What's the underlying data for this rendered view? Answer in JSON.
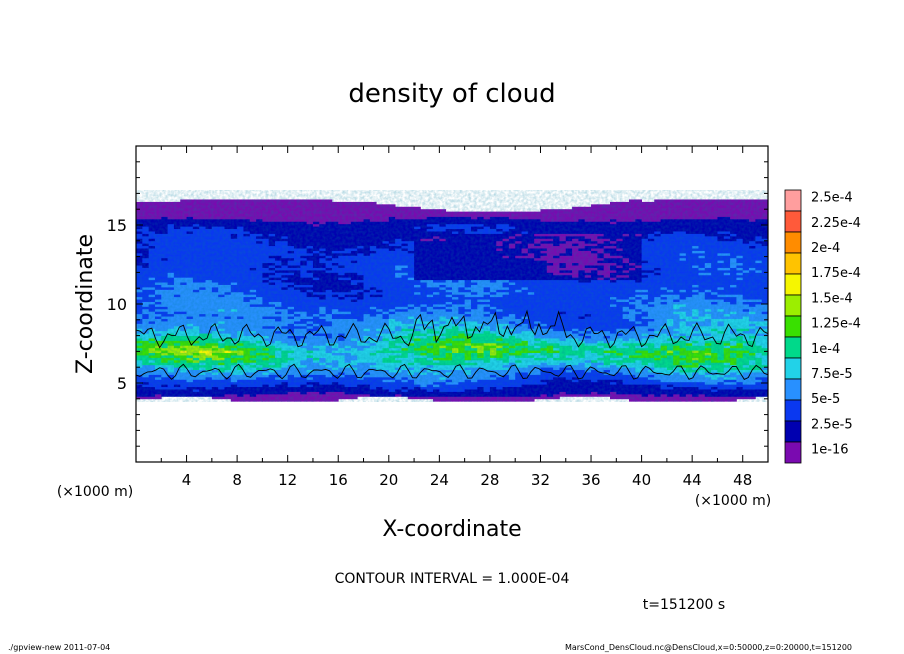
{
  "chart_data": {
    "type": "heatmap",
    "title": "density of cloud",
    "xlabel": "X-coordinate",
    "ylabel": "Z-coordinate",
    "x_unit": "(×1000 m)",
    "x_unit_left": "(×1000 m)",
    "xlim": [
      0,
      50
    ],
    "ylim": [
      0,
      20
    ],
    "x_ticks": [
      4,
      8,
      12,
      16,
      20,
      24,
      28,
      32,
      36,
      40,
      44,
      48
    ],
    "y_ticks": [
      5,
      10,
      15
    ],
    "colorbar": {
      "labels": [
        "2.5e-4",
        "2.25e-4",
        "2e-4",
        "1.75e-4",
        "1.5e-4",
        "1.25e-4",
        "1e-4",
        "7.5e-5",
        "5e-5",
        "2.5e-5",
        "1e-16"
      ],
      "colors": [
        "#ff9e9e",
        "#ff5a3a",
        "#ff8c00",
        "#ffc300",
        "#f6f600",
        "#9cee00",
        "#39e000",
        "#00d98a",
        "#22d2e8",
        "#2890ff",
        "#0a38f0",
        "#0000b0",
        "#7a0ab0"
      ]
    },
    "field": {
      "description_levels": "cloud layer from z about 4 to 16.5 km; peak density near z 7 km",
      "profile_z": [
        3.8,
        4.3,
        5.0,
        5.5,
        6.0,
        6.5,
        7.0,
        7.5,
        8.0,
        9.0,
        10.0,
        11.0,
        12.0,
        13.0,
        14.0,
        15.0,
        15.5,
        16.0,
        16.5
      ],
      "profile_value": [
        1e-16,
        3e-05,
        6e-05,
        8e-05,
        0.000105,
        0.00013,
        0.000145,
        0.00013,
        0.000105,
        8e-05,
        7e-05,
        6.5e-05,
        6e-05,
        5.5e-05,
        5e-05,
        4e-05,
        2e-05,
        5e-06,
        1e-16
      ]
    }
  },
  "annotations": {
    "contour_interval": "CONTOUR INTERVAL = 1.000E-04",
    "time": "t=151200 s"
  },
  "footer": {
    "left": "./gpview-new   2011-07-04",
    "right": "MarsCond_DensCloud.nc@DensCloud,x=0:50000,z=0:20000,t=151200"
  }
}
